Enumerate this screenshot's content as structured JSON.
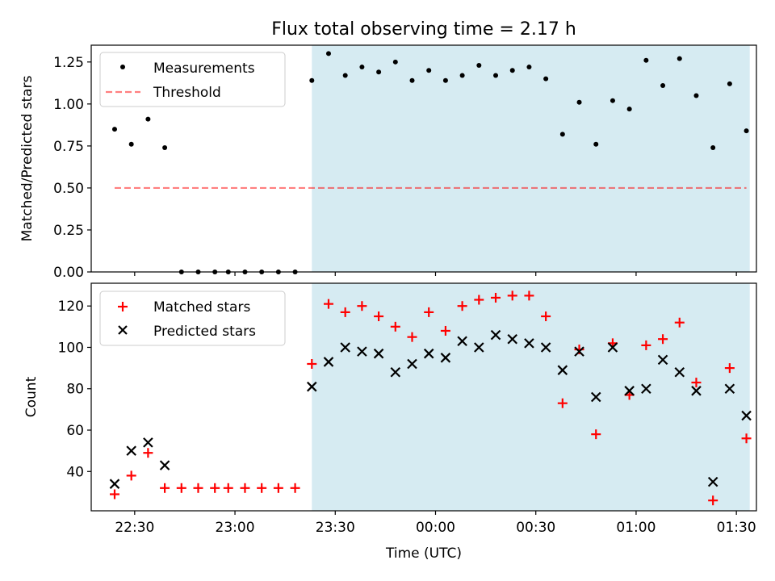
{
  "title": "Flux total observing time = 2.17 h",
  "xlabel": "Time (UTC)",
  "colors": {
    "observing_band": "#add8e6",
    "measurement": "#000000",
    "threshold": "#ff0000",
    "matched": "#ff0000",
    "predicted": "#000000"
  },
  "chart_data": [
    {
      "type": "scatter",
      "panel": "top",
      "ylabel": "Matched/Predicted stars",
      "ylim": [
        0,
        1.35
      ],
      "yticks": [
        0,
        0.25,
        0.5,
        0.75,
        1.0,
        1.25
      ],
      "ytick_labels": [
        "0.00",
        "0.25",
        "0.50",
        "0.75",
        "1.00",
        "1.25"
      ],
      "xlim": [
        "22:17",
        "01:36"
      ],
      "shaded_region": [
        "23:23",
        "01:34"
      ],
      "legend": {
        "position": "top-left",
        "entries": [
          "Measurements",
          "Threshold"
        ]
      },
      "series": [
        {
          "name": "Measurements",
          "marker": "dot",
          "x": [
            "22:24",
            "22:29",
            "22:34",
            "22:39",
            "22:44",
            "22:49",
            "22:54",
            "22:58",
            "23:03",
            "23:08",
            "23:13",
            "23:18",
            "23:23",
            "23:28",
            "23:33",
            "23:38",
            "23:43",
            "23:48",
            "23:53",
            "23:58",
            "00:03",
            "00:08",
            "00:13",
            "00:18",
            "00:23",
            "00:28",
            "00:33",
            "00:38",
            "00:43",
            "00:48",
            "00:53",
            "00:58",
            "01:03",
            "01:08",
            "01:13",
            "01:18",
            "01:23",
            "01:28",
            "01:33"
          ],
          "y": [
            0.85,
            0.76,
            0.91,
            0.74,
            0,
            0,
            0,
            0,
            0,
            0,
            0,
            0,
            1.14,
            1.3,
            1.17,
            1.22,
            1.19,
            1.25,
            1.14,
            1.2,
            1.14,
            1.17,
            1.23,
            1.17,
            1.2,
            1.22,
            1.15,
            0.82,
            1.01,
            0.76,
            1.02,
            0.97,
            1.26,
            1.11,
            1.27,
            1.05,
            0.74,
            1.12,
            0.84
          ]
        },
        {
          "name": "Threshold",
          "style": "dashed-line",
          "x": [
            "22:24",
            "01:33"
          ],
          "y": [
            0.5,
            0.5
          ]
        }
      ]
    },
    {
      "type": "scatter",
      "panel": "bottom",
      "ylabel": "Count",
      "ylim": [
        21,
        131
      ],
      "yticks": [
        40,
        60,
        80,
        100,
        120
      ],
      "ytick_labels": [
        "40",
        "60",
        "80",
        "100",
        "120"
      ],
      "xlim": [
        "22:17",
        "01:36"
      ],
      "xticks": [
        "22:30",
        "23:00",
        "23:30",
        "00:00",
        "00:30",
        "01:00",
        "01:30"
      ],
      "shaded_region": [
        "23:23",
        "01:34"
      ],
      "legend": {
        "position": "top-left",
        "entries": [
          "Matched stars",
          "Predicted stars"
        ]
      },
      "series": [
        {
          "name": "Matched stars",
          "marker": "plus",
          "x": [
            "22:24",
            "22:29",
            "22:34",
            "22:39",
            "22:44",
            "22:49",
            "22:54",
            "22:58",
            "23:03",
            "23:08",
            "23:13",
            "23:18",
            "23:23",
            "23:28",
            "23:33",
            "23:38",
            "23:43",
            "23:48",
            "23:53",
            "23:58",
            "00:03",
            "00:08",
            "00:13",
            "00:18",
            "00:23",
            "00:28",
            "00:33",
            "00:38",
            "00:43",
            "00:48",
            "00:53",
            "00:58",
            "01:03",
            "01:08",
            "01:13",
            "01:18",
            "01:23",
            "01:28",
            "01:33"
          ],
          "y": [
            29,
            38,
            49,
            32,
            32,
            32,
            32,
            32,
            32,
            32,
            32,
            32,
            92,
            121,
            117,
            120,
            115,
            110,
            105,
            117,
            108,
            120,
            123,
            124,
            125,
            125,
            115,
            73,
            99,
            58,
            102,
            77,
            101,
            104,
            112,
            83,
            26,
            90,
            56
          ]
        },
        {
          "name": "Predicted stars",
          "marker": "x",
          "x": [
            "22:24",
            "22:29",
            "22:34",
            "22:39",
            "23:23",
            "23:28",
            "23:33",
            "23:38",
            "23:43",
            "23:48",
            "23:53",
            "23:58",
            "00:03",
            "00:08",
            "00:13",
            "00:18",
            "00:23",
            "00:28",
            "00:33",
            "00:38",
            "00:43",
            "00:48",
            "00:53",
            "00:58",
            "01:03",
            "01:08",
            "01:13",
            "01:18",
            "01:23",
            "01:28",
            "01:33"
          ],
          "y": [
            34,
            50,
            54,
            43,
            81,
            93,
            100,
            98,
            97,
            88,
            92,
            97,
            95,
            103,
            100,
            106,
            104,
            102,
            100,
            89,
            98,
            76,
            100,
            79,
            80,
            94,
            88,
            79,
            35,
            80,
            67
          ]
        }
      ]
    }
  ]
}
